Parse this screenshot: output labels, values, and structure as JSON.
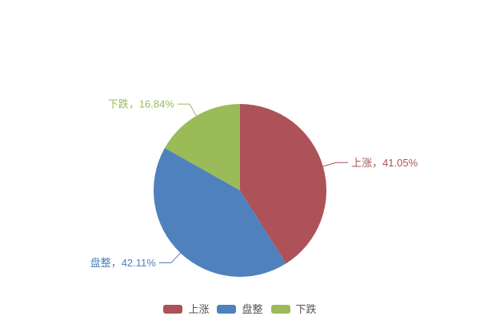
{
  "page": {
    "background": "#ffffff"
  },
  "chart_data": {
    "type": "pie",
    "title": "",
    "categories": [
      "上涨",
      "盘整",
      "下跌"
    ],
    "values": [
      41.05,
      42.11,
      16.84
    ],
    "unit": "%",
    "colors": [
      "#ac5258",
      "#4f81bd",
      "#9abb57"
    ],
    "slice_labels": [
      "上涨，41.05%",
      "盘整，42.11%",
      "下跌，16.84%"
    ],
    "start_angle": "top",
    "direction": "clockwise",
    "center": [
      300,
      238
    ],
    "radius": 108,
    "label_line_color_follows_slice": true,
    "legend": {
      "position": "bottom-center",
      "items": [
        "上涨",
        "盘整",
        "下跌"
      ],
      "text_color": "#555555"
    },
    "background": "#ffffff",
    "grid": false
  }
}
